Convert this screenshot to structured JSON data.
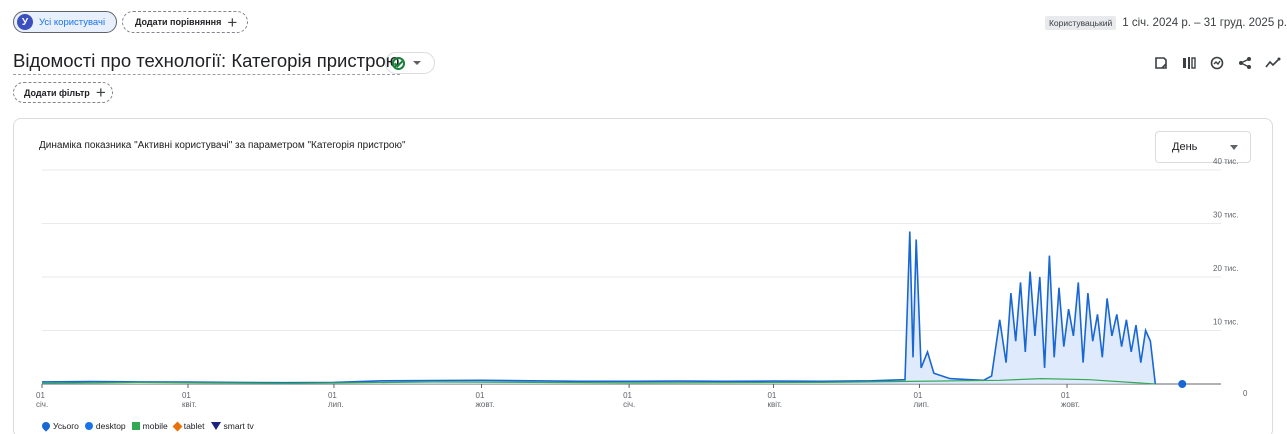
{
  "top": {
    "users_chip": {
      "avatar_letter": "У",
      "label": "Усі користувачі"
    },
    "compare_chip": {
      "label": "Додати порівняння"
    },
    "user_tag": "Користувацький",
    "date_range": "1 січ. 2024 р. – 31 груд. 2025 р."
  },
  "report": {
    "title": "Відомості про технології: Категорія пристрою",
    "filter_chip": "Додати фільтр"
  },
  "toolbar": {
    "icons": [
      "edit-report-icon",
      "compare-icon",
      "insights-icon",
      "share-icon",
      "trend-icon"
    ]
  },
  "card": {
    "chart_title": "Динаміка показника \"Активні користувачі\" за параметром \"Категорія пристрою\"",
    "period": "День"
  },
  "legend": [
    "Усього",
    "desktop",
    "mobile",
    "tablet",
    "smart tv"
  ],
  "colors": {
    "total": "#1967d2",
    "desktop": "#1a73e8",
    "mobile": "#34a853",
    "tablet": "#e8710a",
    "smart_tv": "#1a237e",
    "area_fill": "#d2e3fc"
  },
  "chart_data": {
    "type": "line",
    "y_ticks": [
      "40 тис.",
      "30 тис.",
      "20 тис.",
      "10 тис.",
      "0"
    ],
    "ylim": [
      0,
      40000
    ],
    "x_ticks": [
      {
        "day": "01",
        "month": "січ.",
        "date": "2024-01-01"
      },
      {
        "day": "01",
        "month": "квіт.",
        "date": "2024-04-01"
      },
      {
        "day": "01",
        "month": "лип.",
        "date": "2024-07-01"
      },
      {
        "day": "01",
        "month": "жовт.",
        "date": "2024-10-01"
      },
      {
        "day": "01",
        "month": "січ.",
        "date": "2025-01-01"
      },
      {
        "day": "01",
        "month": "квіт.",
        "date": "2025-04-01"
      },
      {
        "day": "01",
        "month": "лип.",
        "date": "2025-07-01"
      },
      {
        "day": "01",
        "month": "жовт.",
        "date": "2025-10-01"
      }
    ],
    "series": [
      {
        "name": "Усього",
        "points": [
          [
            "2024-01-01",
            400
          ],
          [
            "2024-02-01",
            450
          ],
          [
            "2024-03-01",
            400
          ],
          [
            "2024-04-01",
            350
          ],
          [
            "2024-05-01",
            300
          ],
          [
            "2024-06-01",
            250
          ],
          [
            "2024-07-01",
            300
          ],
          [
            "2024-08-01",
            600
          ],
          [
            "2024-09-01",
            650
          ],
          [
            "2024-10-01",
            700
          ],
          [
            "2024-11-01",
            600
          ],
          [
            "2024-12-01",
            500
          ],
          [
            "2025-01-01",
            500
          ],
          [
            "2025-02-01",
            550
          ],
          [
            "2025-03-01",
            500
          ],
          [
            "2025-04-01",
            550
          ],
          [
            "2025-05-01",
            500
          ],
          [
            "2025-06-01",
            600
          ],
          [
            "2025-06-22",
            800
          ],
          [
            "2025-06-25",
            28500
          ],
          [
            "2025-06-27",
            5000
          ],
          [
            "2025-06-29",
            27000
          ],
          [
            "2025-07-02",
            3000
          ],
          [
            "2025-07-06",
            6000
          ],
          [
            "2025-07-10",
            2000
          ],
          [
            "2025-07-20",
            1000
          ],
          [
            "2025-08-01",
            800
          ],
          [
            "2025-08-10",
            700
          ],
          [
            "2025-08-15",
            1500
          ],
          [
            "2025-08-20",
            12000
          ],
          [
            "2025-08-24",
            4000
          ],
          [
            "2025-08-27",
            17000
          ],
          [
            "2025-08-30",
            8000
          ],
          [
            "2025-09-02",
            19000
          ],
          [
            "2025-09-05",
            6000
          ],
          [
            "2025-09-08",
            21000
          ],
          [
            "2025-09-11",
            9000
          ],
          [
            "2025-09-14",
            20000
          ],
          [
            "2025-09-17",
            3000
          ],
          [
            "2025-09-20",
            24000
          ],
          [
            "2025-09-23",
            5000
          ],
          [
            "2025-09-26",
            18000
          ],
          [
            "2025-09-29",
            7000
          ],
          [
            "2025-10-02",
            14000
          ],
          [
            "2025-10-05",
            9000
          ],
          [
            "2025-10-08",
            19000
          ],
          [
            "2025-10-11",
            4000
          ],
          [
            "2025-10-14",
            17000
          ],
          [
            "2025-10-17",
            8000
          ],
          [
            "2025-10-20",
            13000
          ],
          [
            "2025-10-23",
            5000
          ],
          [
            "2025-10-26",
            16000
          ],
          [
            "2025-10-29",
            9000
          ],
          [
            "2025-11-01",
            13000
          ],
          [
            "2025-11-04",
            7000
          ],
          [
            "2025-11-07",
            12000
          ],
          [
            "2025-11-10",
            6000
          ],
          [
            "2025-11-13",
            11000
          ],
          [
            "2025-11-16",
            4000
          ],
          [
            "2025-11-19",
            10000
          ],
          [
            "2025-11-22",
            8000
          ],
          [
            "2025-11-25",
            0
          ]
        ]
      },
      {
        "name": "mobile",
        "points": [
          [
            "2024-01-01",
            100
          ],
          [
            "2024-03-01",
            300
          ],
          [
            "2024-06-01",
            100
          ],
          [
            "2024-09-01",
            400
          ],
          [
            "2025-01-01",
            200
          ],
          [
            "2025-05-01",
            300
          ],
          [
            "2025-08-20",
            700
          ],
          [
            "2025-09-15",
            1000
          ],
          [
            "2025-10-15",
            800
          ],
          [
            "2025-11-25",
            0
          ]
        ]
      }
    ]
  }
}
